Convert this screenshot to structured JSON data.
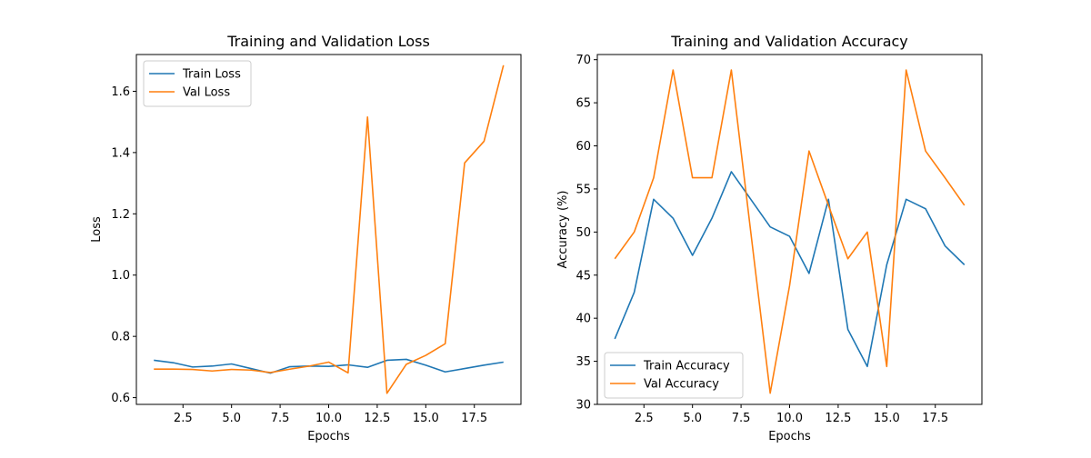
{
  "chart_data": [
    {
      "type": "line",
      "title": "Training and Validation Loss",
      "xlabel": "Epochs",
      "ylabel": "Loss",
      "xlim": [
        0.1,
        19.9
      ],
      "ylim": [
        0.578,
        1.72
      ],
      "xticks": [
        2.5,
        5.0,
        7.5,
        10.0,
        12.5,
        15.0,
        17.5
      ],
      "xtick_labels": [
        "2.5",
        "5.0",
        "7.5",
        "10.0",
        "12.5",
        "15.0",
        "17.5"
      ],
      "yticks": [
        0.6,
        0.8,
        1.0,
        1.2,
        1.4,
        1.6
      ],
      "ytick_labels": [
        "0.6",
        "0.8",
        "1.0",
        "1.2",
        "1.4",
        "1.6"
      ],
      "legend": "upper-left",
      "grid": false,
      "x": [
        1,
        2,
        3,
        4,
        5,
        6,
        7,
        8,
        9,
        10,
        11,
        12,
        13,
        14,
        15,
        16,
        17,
        18,
        19
      ],
      "series": [
        {
          "name": "Train Loss",
          "color": "#1f77b4",
          "values": [
            0.722,
            0.714,
            0.7,
            0.703,
            0.71,
            0.695,
            0.68,
            0.701,
            0.703,
            0.702,
            0.707,
            0.699,
            0.722,
            0.725,
            0.706,
            0.684,
            0.695,
            0.706,
            0.716
          ]
        },
        {
          "name": "Val Loss",
          "color": "#ff7f0e",
          "values": [
            0.693,
            0.693,
            0.692,
            0.687,
            0.692,
            0.69,
            0.682,
            0.693,
            0.703,
            0.716,
            0.681,
            1.516,
            0.614,
            0.709,
            0.738,
            0.776,
            1.366,
            1.437,
            1.685
          ]
        }
      ]
    },
    {
      "type": "line",
      "title": "Training and Validation Accuracy",
      "xlabel": "Epochs",
      "ylabel": "Accuracy (%)",
      "xlim": [
        0.1,
        19.9
      ],
      "ylim": [
        30.0,
        70.6
      ],
      "xticks": [
        2.5,
        5.0,
        7.5,
        10.0,
        12.5,
        15.0,
        17.5
      ],
      "xtick_labels": [
        "2.5",
        "5.0",
        "7.5",
        "10.0",
        "12.5",
        "15.0",
        "17.5"
      ],
      "yticks": [
        30,
        35,
        40,
        45,
        50,
        55,
        60,
        65,
        70
      ],
      "ytick_labels": [
        "30",
        "35",
        "40",
        "45",
        "50",
        "55",
        "60",
        "65",
        "70"
      ],
      "legend": "lower-left",
      "grid": false,
      "x": [
        1,
        2,
        3,
        4,
        5,
        6,
        7,
        8,
        9,
        10,
        11,
        12,
        13,
        14,
        15,
        16,
        17,
        18,
        19
      ],
      "series": [
        {
          "name": "Train Accuracy",
          "color": "#1f77b4",
          "values": [
            37.6,
            43.0,
            53.8,
            51.6,
            47.3,
            51.6,
            57.0,
            53.8,
            50.6,
            49.5,
            45.2,
            53.8,
            38.7,
            34.4,
            46.2,
            53.8,
            52.7,
            48.4,
            46.2
          ]
        },
        {
          "name": "Val Accuracy",
          "color": "#ff7f0e",
          "values": [
            46.9,
            50.0,
            56.3,
            68.8,
            56.3,
            56.3,
            68.8,
            50.0,
            31.3,
            43.8,
            59.4,
            53.1,
            46.9,
            50.0,
            34.4,
            68.8,
            59.4,
            56.3,
            53.1
          ]
        }
      ]
    }
  ]
}
